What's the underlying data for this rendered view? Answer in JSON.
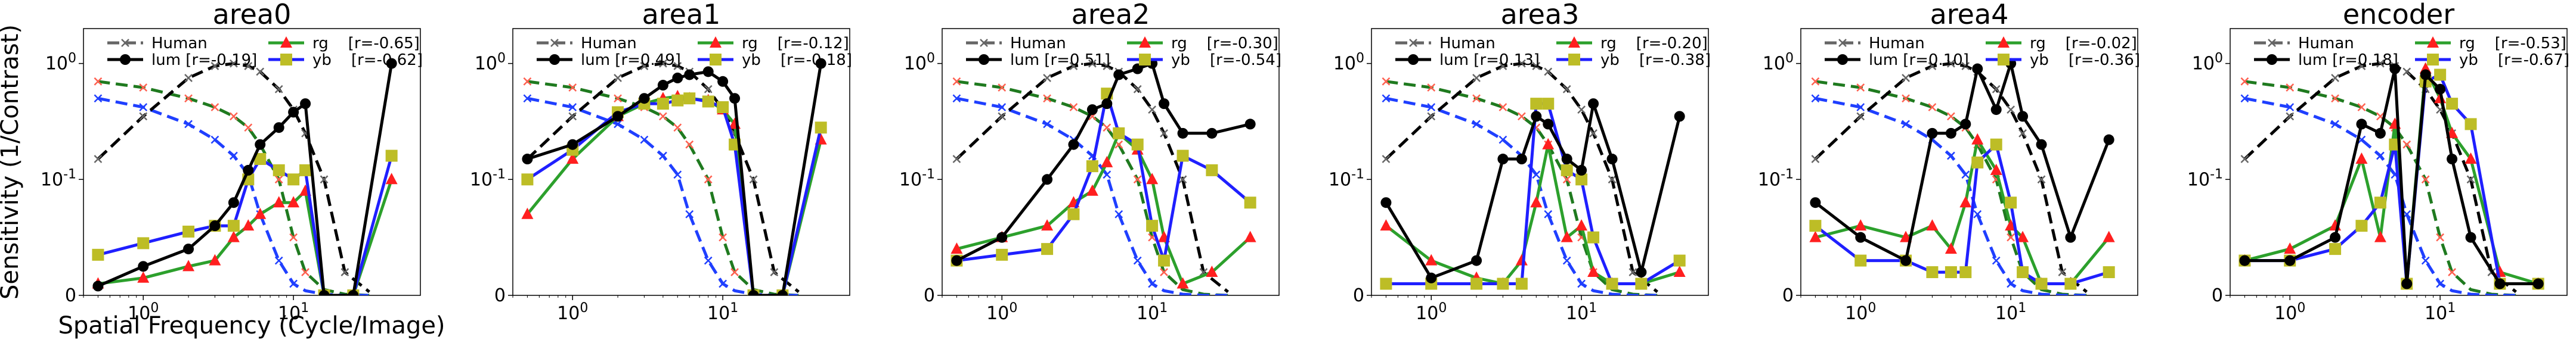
{
  "figure": {
    "ylabel": "Sensitivity (1/Contrast)",
    "xlabel": "Spatial Frequency (Cycle/Image)"
  },
  "colors": {
    "human": "#666666",
    "lum": "#000000",
    "rg": "#2ca02c",
    "yb": "#1f1fff",
    "rg_marker": "#ff1f1f",
    "yb_marker": "#bdbd26",
    "human_rg": "#1f7a1f",
    "human_yb": "#1f3fff",
    "human_lum_marker": "#ff6050"
  },
  "icons": {
    "human": "x-marker-icon",
    "lum": "circle-marker-icon",
    "rg": "triangle-marker-icon",
    "yb": "square-marker-icon"
  },
  "chart_data": [
    {
      "type": "line",
      "title": "area0",
      "xscale": "log",
      "yscale": "symlog",
      "xlim": [
        0.4,
        70
      ],
      "ylim": [
        0,
        2
      ],
      "xticks": [
        "10^0",
        "10^1"
      ],
      "yticks": [
        "0",
        "10^-1",
        "10^0"
      ],
      "legend_placement": "top",
      "legend": {
        "human": "Human",
        "lum": "lum [r=-0.19]",
        "rg": "rg    [r=-0.65]",
        "yb": "yb    [r=-0.62]"
      },
      "x": [
        0.5,
        1,
        2,
        3,
        4,
        5,
        6,
        8,
        10,
        12,
        16,
        25,
        45
      ],
      "human_x": [
        0.5,
        1,
        2,
        3,
        4,
        5,
        6,
        8,
        10,
        12,
        16,
        22,
        32
      ],
      "series": [
        {
          "name": "Human lum",
          "key": "human_lum",
          "values": [
            0.15,
            0.35,
            0.75,
            0.95,
            1.0,
            0.95,
            0.85,
            0.6,
            0.4,
            0.25,
            0.1,
            0.02,
            0.003
          ]
        },
        {
          "name": "Human rg",
          "key": "human_rg",
          "values": [
            0.7,
            0.62,
            0.5,
            0.42,
            0.35,
            0.28,
            0.2,
            0.1,
            0.05,
            0.02,
            0.005,
            0.001,
            0
          ]
        },
        {
          "name": "Human yb",
          "key": "human_yb",
          "values": [
            0.5,
            0.42,
            0.3,
            0.22,
            0.16,
            0.11,
            0.07,
            0.03,
            0.01,
            0.004,
            0.001,
            0,
            0
          ]
        },
        {
          "name": "lum",
          "key": "lum",
          "values": [
            0.008,
            0.025,
            0.04,
            0.06,
            0.08,
            0.12,
            0.2,
            0.28,
            0.38,
            0.45,
            0.0,
            0.0,
            1.0
          ]
        },
        {
          "name": "rg",
          "key": "rg",
          "values": [
            0.01,
            0.015,
            0.025,
            0.03,
            0.05,
            0.06,
            0.07,
            0.08,
            0.08,
            0.09,
            0.0,
            0.0,
            0.1
          ]
        },
        {
          "name": "yb",
          "key": "yb",
          "values": [
            0.035,
            0.045,
            0.055,
            0.06,
            0.06,
            0.1,
            0.15,
            0.12,
            0.1,
            0.12,
            0.0,
            0.0,
            0.16
          ]
        }
      ]
    },
    {
      "type": "line",
      "title": "area1",
      "xscale": "log",
      "yscale": "symlog",
      "xlim": [
        0.4,
        70
      ],
      "ylim": [
        0,
        2
      ],
      "xticks": [
        "10^0",
        "10^1"
      ],
      "yticks": [
        "0",
        "10^-1",
        "10^0"
      ],
      "legend_placement": "top",
      "legend": {
        "human": "Human",
        "lum": "lum [r=0.49]",
        "rg": "rg    [r=-0.12]",
        "yb": "yb    [r=-0.18]"
      },
      "x": [
        0.5,
        1,
        2,
        3,
        4,
        5,
        6,
        8,
        10,
        12,
        16,
        25,
        45
      ],
      "human_x": [
        0.5,
        1,
        2,
        3,
        4,
        5,
        6,
        8,
        10,
        12,
        16,
        22,
        32
      ],
      "series": [
        {
          "name": "Human lum",
          "key": "human_lum",
          "values": [
            0.15,
            0.35,
            0.75,
            0.95,
            1.0,
            0.95,
            0.85,
            0.6,
            0.4,
            0.25,
            0.1,
            0.02,
            0.003
          ]
        },
        {
          "name": "Human rg",
          "key": "human_rg",
          "values": [
            0.7,
            0.62,
            0.5,
            0.42,
            0.35,
            0.28,
            0.2,
            0.1,
            0.05,
            0.02,
            0.005,
            0.001,
            0
          ]
        },
        {
          "name": "Human yb",
          "key": "human_yb",
          "values": [
            0.5,
            0.42,
            0.3,
            0.22,
            0.16,
            0.11,
            0.07,
            0.03,
            0.01,
            0.004,
            0.001,
            0,
            0
          ]
        },
        {
          "name": "lum",
          "key": "lum",
          "values": [
            0.15,
            0.2,
            0.35,
            0.5,
            0.65,
            0.75,
            0.8,
            0.85,
            0.7,
            0.5,
            0.0,
            0.0,
            1.0
          ]
        },
        {
          "name": "rg",
          "key": "rg",
          "values": [
            0.07,
            0.15,
            0.35,
            0.45,
            0.5,
            0.52,
            0.5,
            0.48,
            0.4,
            0.3,
            0.0,
            0.0,
            0.22
          ]
        },
        {
          "name": "yb",
          "key": "yb",
          "values": [
            0.1,
            0.18,
            0.38,
            0.45,
            0.45,
            0.48,
            0.5,
            0.47,
            0.42,
            0.2,
            0.0,
            0.0,
            0.28
          ]
        }
      ]
    },
    {
      "type": "line",
      "title": "area2",
      "xscale": "log",
      "yscale": "symlog",
      "xlim": [
        0.4,
        70
      ],
      "ylim": [
        0,
        2
      ],
      "xticks": [
        "10^0",
        "10^1"
      ],
      "yticks": [
        "0",
        "10^-1",
        "10^0"
      ],
      "legend_placement": "top",
      "legend": {
        "human": "Human",
        "lum": "lum [r=0.51]",
        "rg": "rg    [r=-0.30]",
        "yb": "yb    [r=-0.54]"
      },
      "x": [
        0.5,
        1,
        2,
        3,
        4,
        5,
        6,
        8,
        10,
        12,
        16,
        25,
        45
      ],
      "human_x": [
        0.5,
        1,
        2,
        3,
        4,
        5,
        6,
        8,
        10,
        12,
        16,
        22,
        32
      ],
      "series": [
        {
          "name": "Human lum",
          "key": "human_lum",
          "values": [
            0.15,
            0.35,
            0.75,
            0.95,
            1.0,
            0.95,
            0.85,
            0.6,
            0.4,
            0.25,
            0.1,
            0.02,
            0.003
          ]
        },
        {
          "name": "Human rg",
          "key": "human_rg",
          "values": [
            0.7,
            0.62,
            0.5,
            0.42,
            0.35,
            0.28,
            0.2,
            0.1,
            0.05,
            0.02,
            0.005,
            0.001,
            0
          ]
        },
        {
          "name": "Human yb",
          "key": "human_yb",
          "values": [
            0.5,
            0.42,
            0.3,
            0.22,
            0.16,
            0.11,
            0.07,
            0.03,
            0.01,
            0.004,
            0.001,
            0,
            0
          ]
        },
        {
          "name": "lum",
          "key": "lum",
          "values": [
            0.03,
            0.05,
            0.1,
            0.2,
            0.4,
            0.45,
            0.8,
            0.9,
            1.0,
            0.45,
            0.25,
            0.25,
            0.3
          ]
        },
        {
          "name": "rg",
          "key": "rg",
          "values": [
            0.04,
            0.05,
            0.06,
            0.08,
            0.09,
            0.14,
            0.25,
            0.18,
            0.1,
            0.05,
            0.01,
            0.02,
            0.05
          ]
        },
        {
          "name": "yb",
          "key": "yb",
          "values": [
            0.03,
            0.035,
            0.04,
            0.07,
            0.13,
            0.55,
            0.25,
            0.2,
            0.06,
            0.03,
            0.16,
            0.12,
            0.08
          ]
        }
      ]
    },
    {
      "type": "line",
      "title": "area3",
      "xscale": "log",
      "yscale": "symlog",
      "xlim": [
        0.4,
        70
      ],
      "ylim": [
        0,
        2
      ],
      "xticks": [
        "10^0",
        "10^1"
      ],
      "yticks": [
        "0",
        "10^-1",
        "10^0"
      ],
      "legend_placement": "top",
      "legend": {
        "human": "Human",
        "lum": "lum [r=0.13]",
        "rg": "rg    [r=-0.20]",
        "yb": "yb    [r=-0.38]"
      },
      "x": [
        0.5,
        1,
        2,
        3,
        4,
        5,
        6,
        8,
        10,
        12,
        16,
        25,
        45
      ],
      "human_x": [
        0.5,
        1,
        2,
        3,
        4,
        5,
        6,
        8,
        10,
        12,
        16,
        22,
        32
      ],
      "series": [
        {
          "name": "Human lum",
          "key": "human_lum",
          "values": [
            0.15,
            0.35,
            0.75,
            0.95,
            1.0,
            0.95,
            0.85,
            0.6,
            0.4,
            0.25,
            0.1,
            0.02,
            0.003
          ]
        },
        {
          "name": "Human rg",
          "key": "human_rg",
          "values": [
            0.7,
            0.62,
            0.5,
            0.42,
            0.35,
            0.28,
            0.2,
            0.1,
            0.05,
            0.02,
            0.005,
            0.001,
            0
          ]
        },
        {
          "name": "Human yb",
          "key": "human_yb",
          "values": [
            0.5,
            0.42,
            0.3,
            0.22,
            0.16,
            0.11,
            0.07,
            0.03,
            0.01,
            0.004,
            0.001,
            0,
            0
          ]
        },
        {
          "name": "lum",
          "key": "lum",
          "values": [
            0.08,
            0.015,
            0.03,
            0.15,
            0.15,
            0.35,
            0.3,
            0.15,
            0.12,
            0.45,
            0.15,
            0.02,
            0.35
          ]
        },
        {
          "name": "rg",
          "key": "rg",
          "values": [
            0.06,
            0.03,
            0.015,
            0.01,
            0.03,
            0.08,
            0.2,
            0.05,
            0.06,
            0.02,
            0.01,
            0.01,
            0.02
          ]
        },
        {
          "name": "yb",
          "key": "yb",
          "values": [
            0.01,
            0.01,
            0.01,
            0.01,
            0.01,
            0.45,
            0.45,
            0.12,
            0.1,
            0.05,
            0.01,
            0.01,
            0.03
          ]
        }
      ]
    },
    {
      "type": "line",
      "title": "area4",
      "xscale": "log",
      "yscale": "symlog",
      "xlim": [
        0.4,
        70
      ],
      "ylim": [
        0,
        2
      ],
      "xticks": [
        "10^0",
        "10^1"
      ],
      "yticks": [
        "0",
        "10^-1",
        "10^0"
      ],
      "legend_placement": "top",
      "legend": {
        "human": "Human",
        "lum": "lum [r=0.10]",
        "rg": "rg    [r=-0.02]",
        "yb": "yb    [r=-0.36]"
      },
      "x": [
        0.5,
        1,
        2,
        3,
        4,
        5,
        6,
        8,
        10,
        12,
        16,
        25,
        45
      ],
      "human_x": [
        0.5,
        1,
        2,
        3,
        4,
        5,
        6,
        8,
        10,
        12,
        16,
        22,
        32
      ],
      "series": [
        {
          "name": "Human lum",
          "key": "human_lum",
          "values": [
            0.15,
            0.35,
            0.75,
            0.95,
            1.0,
            0.95,
            0.85,
            0.6,
            0.4,
            0.25,
            0.1,
            0.02,
            0.003
          ]
        },
        {
          "name": "Human rg",
          "key": "human_rg",
          "values": [
            0.7,
            0.62,
            0.5,
            0.42,
            0.35,
            0.28,
            0.2,
            0.1,
            0.05,
            0.02,
            0.005,
            0.001,
            0
          ]
        },
        {
          "name": "Human yb",
          "key": "human_yb",
          "values": [
            0.5,
            0.42,
            0.3,
            0.22,
            0.16,
            0.11,
            0.07,
            0.03,
            0.01,
            0.004,
            0.001,
            0,
            0
          ]
        },
        {
          "name": "lum",
          "key": "lum",
          "values": [
            0.08,
            0.05,
            0.03,
            0.25,
            0.25,
            0.3,
            0.9,
            0.4,
            1.0,
            0.35,
            0.2,
            0.05,
            0.22
          ]
        },
        {
          "name": "rg",
          "key": "rg",
          "values": [
            0.05,
            0.06,
            0.05,
            0.06,
            0.04,
            0.08,
            0.22,
            0.12,
            0.06,
            0.05,
            0.01,
            0.01,
            0.05
          ]
        },
        {
          "name": "yb",
          "key": "yb",
          "values": [
            0.06,
            0.03,
            0.03,
            0.02,
            0.02,
            0.02,
            0.14,
            0.2,
            0.08,
            0.02,
            0.01,
            0.01,
            0.02
          ]
        }
      ]
    },
    {
      "type": "line",
      "title": "encoder",
      "xscale": "log",
      "yscale": "symlog",
      "xlim": [
        0.4,
        70
      ],
      "ylim": [
        0,
        2
      ],
      "xticks": [
        "10^0",
        "10^1"
      ],
      "yticks": [
        "0",
        "10^-1",
        "10^0"
      ],
      "legend_placement": "top",
      "legend": {
        "human": "Human",
        "lum": "lum [r=0.18]",
        "rg": "rg    [r=-0.53]",
        "yb": "yb    [r=-0.67]"
      },
      "x": [
        0.5,
        1,
        2,
        3,
        4,
        5,
        6,
        8,
        10,
        12,
        16,
        25,
        45
      ],
      "human_x": [
        0.5,
        1,
        2,
        3,
        4,
        5,
        6,
        8,
        10,
        12,
        16,
        22,
        32
      ],
      "series": [
        {
          "name": "Human lum",
          "key": "human_lum",
          "values": [
            0.15,
            0.35,
            0.75,
            0.95,
            1.0,
            0.95,
            0.85,
            0.6,
            0.4,
            0.25,
            0.1,
            0.02,
            0.003
          ]
        },
        {
          "name": "Human rg",
          "key": "human_rg",
          "values": [
            0.7,
            0.62,
            0.5,
            0.42,
            0.35,
            0.28,
            0.2,
            0.1,
            0.05,
            0.02,
            0.005,
            0.001,
            0
          ]
        },
        {
          "name": "Human yb",
          "key": "human_yb",
          "values": [
            0.5,
            0.42,
            0.3,
            0.22,
            0.16,
            0.11,
            0.07,
            0.03,
            0.01,
            0.004,
            0.001,
            0,
            0
          ]
        },
        {
          "name": "lum",
          "key": "lum",
          "values": [
            0.03,
            0.03,
            0.05,
            0.3,
            0.25,
            0.9,
            0.01,
            0.8,
            0.6,
            0.15,
            0.05,
            0.01,
            0.01
          ]
        },
        {
          "name": "rg",
          "key": "rg",
          "values": [
            0.03,
            0.04,
            0.06,
            0.15,
            0.05,
            0.3,
            0.01,
            0.9,
            0.5,
            0.25,
            0.15,
            0.02,
            0.01
          ]
        },
        {
          "name": "yb",
          "key": "yb",
          "values": [
            0.03,
            0.03,
            0.04,
            0.06,
            0.08,
            0.2,
            0.01,
            0.7,
            0.8,
            0.45,
            0.3,
            0.01,
            0.01
          ]
        }
      ]
    }
  ]
}
